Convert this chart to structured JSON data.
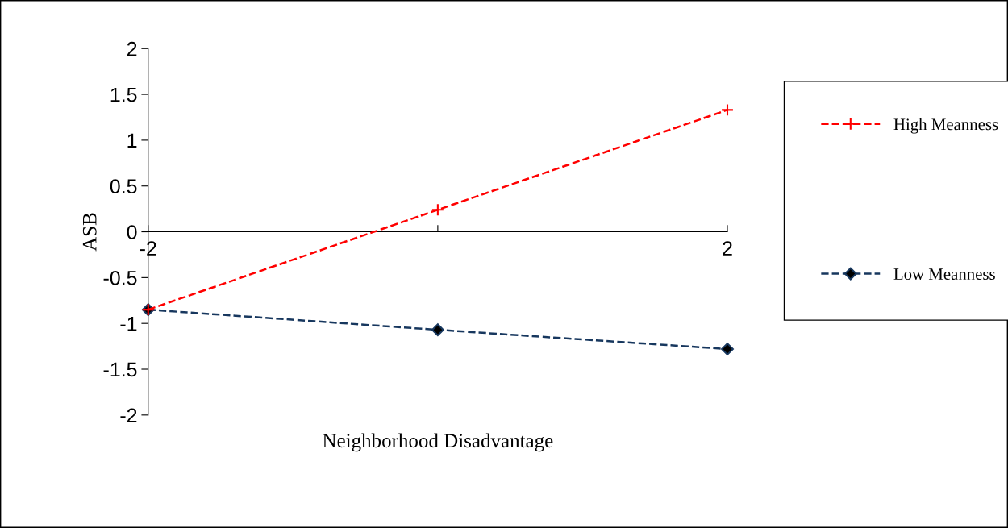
{
  "chart_data": {
    "type": "line",
    "xlabel": "Neighborhood Disadvantage",
    "ylabel": "ASB",
    "categories": [
      "-2",
      null,
      "2"
    ],
    "series": [
      {
        "name": "High Meanness",
        "color": "#ff0000",
        "values": [
          -0.85,
          0.24,
          1.33
        ],
        "marker": "cross"
      },
      {
        "name": "Low Meanness",
        "color": "#17375e",
        "values": [
          -0.85,
          -1.07,
          -1.28
        ],
        "marker": "diamond"
      }
    ],
    "ylim": [
      -2,
      2
    ],
    "yticks": [
      -2,
      -1.5,
      -1,
      -0.5,
      0,
      0.5,
      1,
      1.5,
      2
    ],
    "grid": false,
    "legend": "right",
    "line_style": "dashed"
  }
}
